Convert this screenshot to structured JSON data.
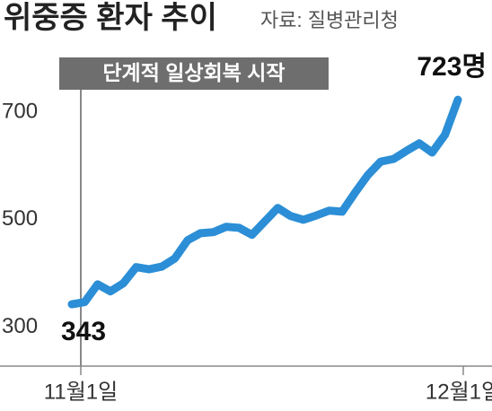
{
  "chart_data": {
    "type": "line",
    "title": "위중증 환자 추이",
    "source": "자료: 질병관리청",
    "annotation": "단계적 일상회복 시작",
    "categories": [
      "11월1일",
      null,
      null,
      null,
      null,
      null,
      null,
      null,
      null,
      null,
      null,
      null,
      null,
      null,
      null,
      null,
      null,
      null,
      null,
      null,
      null,
      null,
      null,
      null,
      null,
      null,
      null,
      null,
      null,
      null,
      "12월1일"
    ],
    "series": [
      {
        "name": "위중증 환자",
        "color": "#2b8ed6",
        "values": [
          343,
          347,
          380,
          367,
          382,
          412,
          408,
          413,
          428,
          462,
          475,
          477,
          487,
          485,
          472,
          497,
          522,
          507,
          500,
          508,
          517,
          515,
          550,
          583,
          608,
          613,
          628,
          642,
          625,
          658,
          723
        ],
        "value_labels": [
          "343",
          null,
          null,
          null,
          null,
          null,
          null,
          null,
          null,
          null,
          null,
          null,
          null,
          null,
          null,
          null,
          null,
          null,
          null,
          null,
          null,
          null,
          null,
          null,
          null,
          null,
          null,
          null,
          null,
          null,
          "723명"
        ]
      }
    ],
    "ylim": [
      228,
      800
    ],
    "yticks": [
      300,
      500,
      700
    ],
    "grid": false
  }
}
